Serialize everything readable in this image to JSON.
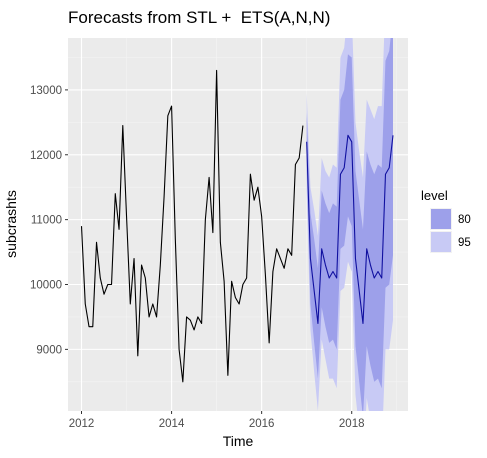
{
  "chart_data": {
    "type": "line",
    "title": "Forecasts from STL +  ETS(A,N,N)",
    "xlabel": "Time",
    "ylabel": "subcrashts",
    "xlim": [
      2011.7,
      2019.25
    ],
    "ylim": [
      8050,
      13800
    ],
    "x_ticks": [
      2012,
      2014,
      2016,
      2018
    ],
    "x_tick_labels": [
      "2012",
      "2014",
      "2016",
      "2018"
    ],
    "y_ticks": [
      9000,
      10000,
      11000,
      12000,
      13000
    ],
    "y_tick_labels": [
      "9000",
      "10000",
      "11000",
      "12000",
      "13000"
    ],
    "grid": true,
    "legend": {
      "title": "level",
      "position": "right",
      "entries": [
        {
          "label": "80",
          "color": "#9da0ea"
        },
        {
          "label": "95",
          "color": "#c8caf5"
        }
      ]
    },
    "colors": {
      "panel": "#ebebeb",
      "grid_major": "#ffffff",
      "grid_minor": "#f4f4f4",
      "history_line": "#000000",
      "forecast_line": "#1010a0",
      "band80": "#9da0ea",
      "band95": "#c8caf5"
    },
    "history": {
      "x": [
        2012,
        2012.0833,
        2012.1667,
        2012.25,
        2012.3333,
        2012.4167,
        2012.5,
        2012.5833,
        2012.6667,
        2012.75,
        2012.8333,
        2012.9167,
        2013,
        2013.0833,
        2013.1667,
        2013.25,
        2013.3333,
        2013.4167,
        2013.5,
        2013.5833,
        2013.6667,
        2013.75,
        2013.8333,
        2013.9167,
        2014,
        2014.0833,
        2014.1667,
        2014.25,
        2014.3333,
        2014.4167,
        2014.5,
        2014.5833,
        2014.6667,
        2014.75,
        2014.8333,
        2014.9167,
        2015,
        2015.0833,
        2015.1667,
        2015.25,
        2015.3333,
        2015.4167,
        2015.5,
        2015.5833,
        2015.6667,
        2015.75,
        2015.8333,
        2015.9167,
        2016,
        2016.0833,
        2016.1667,
        2016.25,
        2016.3333,
        2016.4167,
        2016.5,
        2016.5833,
        2016.6667,
        2016.75,
        2016.8333,
        2016.9167
      ],
      "y": [
        10900,
        9700,
        9350,
        9350,
        10650,
        10100,
        9850,
        10000,
        10000,
        11400,
        10850,
        12450,
        11050,
        9700,
        10400,
        8900,
        10300,
        10100,
        9500,
        9700,
        9500,
        10300,
        11350,
        12600,
        12750,
        10700,
        9000,
        8500,
        9500,
        9450,
        9300,
        9500,
        9400,
        11000,
        11650,
        10800,
        13300,
        10650,
        10050,
        8600,
        10050,
        9800,
        9700,
        10000,
        10100,
        11700,
        11300,
        11500,
        11050,
        10150,
        9100,
        10200,
        10550,
        10400,
        10250,
        10550,
        10450,
        11850,
        11950,
        12450
      ]
    },
    "forecast": {
      "x": [
        2017,
        2017.0833,
        2017.1667,
        2017.25,
        2017.3333,
        2017.4167,
        2017.5,
        2017.5833,
        2017.6667,
        2017.75,
        2017.8333,
        2017.9167,
        2018,
        2018.0833,
        2018.1667,
        2018.25,
        2018.3333,
        2018.4167,
        2018.5,
        2018.5833,
        2018.6667,
        2018.75,
        2018.8333,
        2018.9167
      ],
      "mean": [
        12200,
        10400,
        9900,
        9400,
        10550,
        10300,
        10100,
        10200,
        10100,
        11700,
        11800,
        12300,
        12200,
        10400,
        9900,
        9400,
        10550,
        10300,
        10100,
        10200,
        10100,
        11700,
        11800,
        12300
      ],
      "lo80": [
        11750,
        9700,
        9100,
        8550,
        9650,
        9350,
        9100,
        9150,
        9000,
        10550,
        10600,
        11050,
        10900,
        9050,
        8500,
        7950,
        9050,
        8750,
        8500,
        8550,
        8400,
        9950,
        10000,
        10450
      ],
      "hi80": [
        12650,
        11100,
        10700,
        10250,
        11450,
        11250,
        11100,
        11250,
        11200,
        12850,
        13000,
        13550,
        13500,
        11750,
        11300,
        10850,
        12050,
        11850,
        11700,
        11850,
        11800,
        13450,
        13600,
        14150
      ],
      "lo95": [
        11450,
        9300,
        8650,
        8050,
        9150,
        8850,
        8550,
        8550,
        8400,
        9900,
        9950,
        10350,
        10200,
        8300,
        7750,
        7150,
        8250,
        7900,
        7650,
        7650,
        7450,
        9000,
        9000,
        9450
      ],
      "hi95": [
        12950,
        11500,
        11150,
        10750,
        11950,
        11750,
        11650,
        11850,
        11800,
        13500,
        13650,
        14250,
        14200,
        12500,
        12050,
        11650,
        12850,
        12700,
        12550,
        12750,
        12750,
        14400,
        14600,
        15150
      ]
    }
  }
}
